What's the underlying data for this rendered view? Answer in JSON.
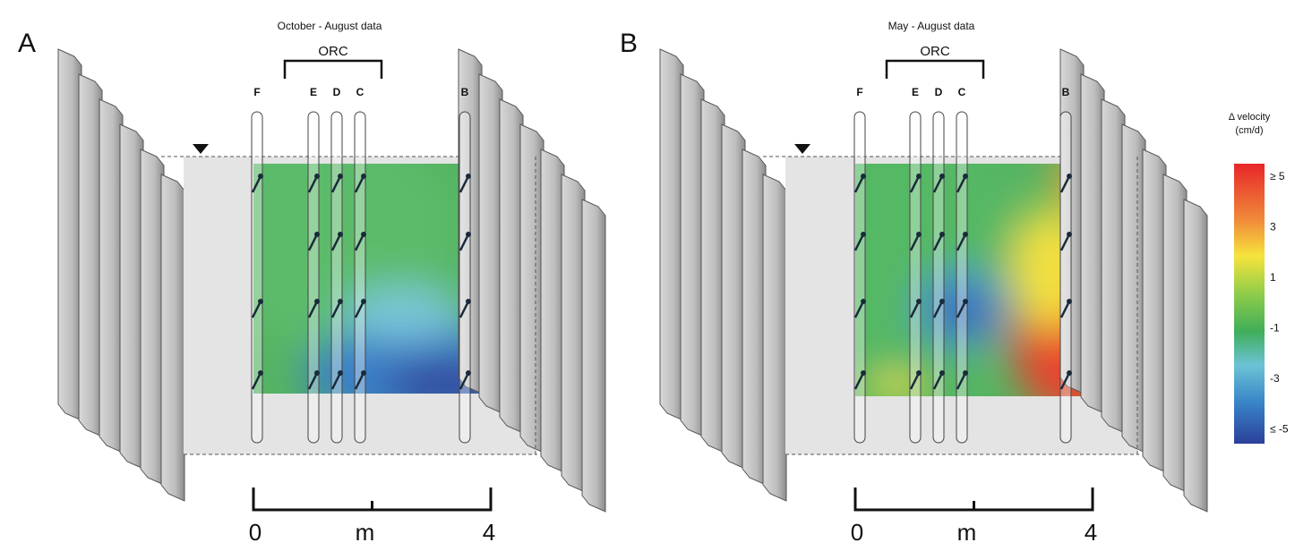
{
  "panels": [
    {
      "label": "A",
      "title": "October - August data",
      "group_label": "ORC",
      "wells": [
        "F",
        "E",
        "D",
        "C",
        "B"
      ],
      "scale": {
        "start": "0",
        "unit": "m",
        "end": "4"
      }
    },
    {
      "label": "B",
      "title": "May - August data",
      "group_label": "ORC",
      "wells": [
        "F",
        "E",
        "D",
        "C",
        "B"
      ],
      "scale": {
        "start": "0",
        "unit": "m",
        "end": "4"
      }
    }
  ],
  "colorbar": {
    "title": "Δ velocity",
    "unit": "(cm/d)",
    "ticks": [
      "≥ 5",
      "3",
      "1",
      "-1",
      "-3",
      "≤ -5"
    ]
  }
}
